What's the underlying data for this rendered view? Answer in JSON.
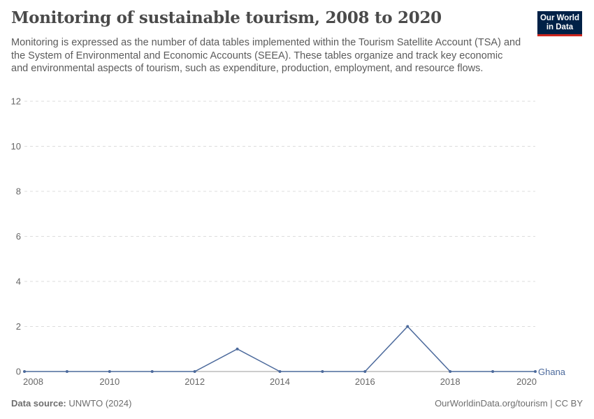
{
  "header": {
    "title": "Monitoring of sustainable tourism, 2008 to 2020",
    "subtitle": "Monitoring is expressed as the number of data tables implemented within the Tourism Satellite Account (TSA) and the System of Environmental and Economic Accounts (SEEA). These tables organize and track key economic and environmental aspects of tourism, such as expenditure, production, employment, and resource flows.",
    "logo": "Our World in Data"
  },
  "footer": {
    "source_label": "Data source:",
    "source": "UNWTO (2024)",
    "credit": "OurWorldinData.org/tourism | CC BY"
  },
  "chart_data": {
    "type": "line",
    "x": [
      2008,
      2009,
      2010,
      2011,
      2012,
      2013,
      2014,
      2015,
      2016,
      2017,
      2018,
      2019,
      2020
    ],
    "series": [
      {
        "name": "Ghana",
        "color": "#4c6a9c",
        "values": [
          0,
          0,
          0,
          0,
          0,
          1,
          0,
          0,
          0,
          2,
          0,
          0,
          0
        ]
      }
    ],
    "xlim": [
      2008,
      2020
    ],
    "ylim": [
      0,
      12
    ],
    "xticks": [
      "2008",
      "2010",
      "2012",
      "2014",
      "2016",
      "2018",
      "2020"
    ],
    "yticks": [
      "0",
      "2",
      "4",
      "6",
      "8",
      "10",
      "12"
    ],
    "grid": "horizontal dashed",
    "legend": "inline-right"
  }
}
